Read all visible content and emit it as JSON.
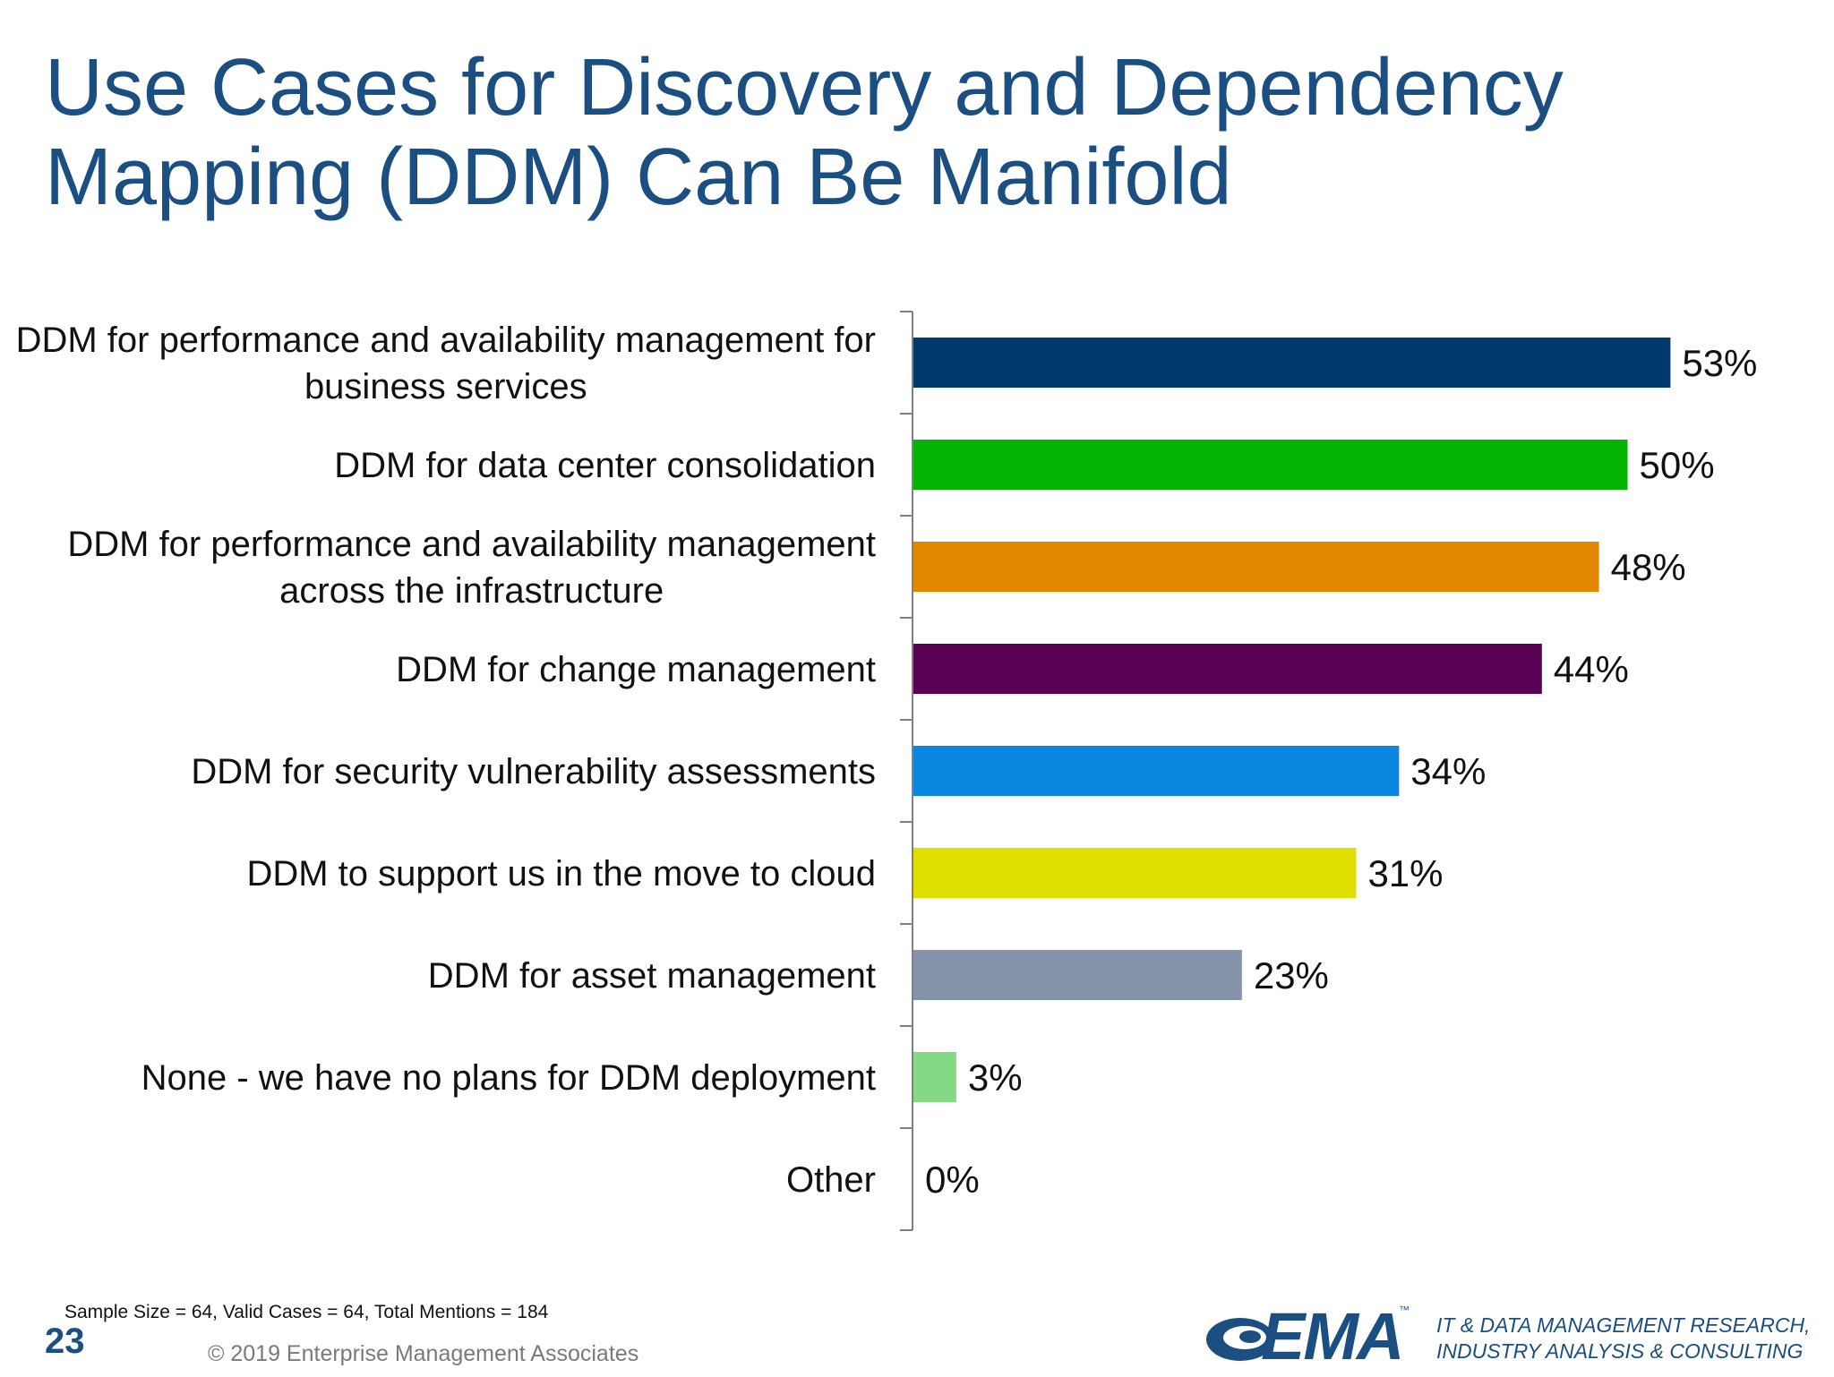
{
  "slide": {
    "title_line1": "Use Cases for Discovery and Dependency",
    "title_line2": "Mapping (DDM) Can Be Manifold",
    "sample_note": "Sample Size = 64, Valid Cases = 64, Total Mentions = 184",
    "page_number": "23",
    "copyright": "© 2019 Enterprise Management Associates",
    "logo_text": "EMA",
    "logo_tm": "™",
    "tagline_line1": "IT & DATA MANAGEMENT RESEARCH,",
    "tagline_line2": "INDUSTRY ANALYSIS & CONSULTING",
    "accent_color": "#1b4f82"
  },
  "chart_data": {
    "type": "bar",
    "orientation": "horizontal",
    "categories": [
      [
        "DDM for performance and availability management for",
        "business services"
      ],
      [
        "DDM for data center consolidation"
      ],
      [
        "DDM for performance and availability management",
        "across the infrastructure"
      ],
      [
        "DDM for change management"
      ],
      [
        "DDM for security vulnerability assessments"
      ],
      [
        "DDM to support us in the move to cloud"
      ],
      [
        "DDM for asset management"
      ],
      [
        "None - we have no plans for DDM deployment"
      ],
      [
        "Other"
      ]
    ],
    "values": [
      53,
      50,
      48,
      44,
      34,
      31,
      23,
      3,
      0
    ],
    "value_labels": [
      "53%",
      "50%",
      "48%",
      "44%",
      "34%",
      "31%",
      "23%",
      "3%",
      "0%"
    ],
    "colors": [
      "#003a6c",
      "#04b404",
      "#e38600",
      "#5a0054",
      "#0a86e0",
      "#e0e000",
      "#8593ab",
      "#85d985",
      "#ffffff"
    ],
    "xlim": [
      0,
      60
    ],
    "grid": false,
    "legend": "none",
    "title": "",
    "xlabel": "",
    "ylabel": ""
  }
}
